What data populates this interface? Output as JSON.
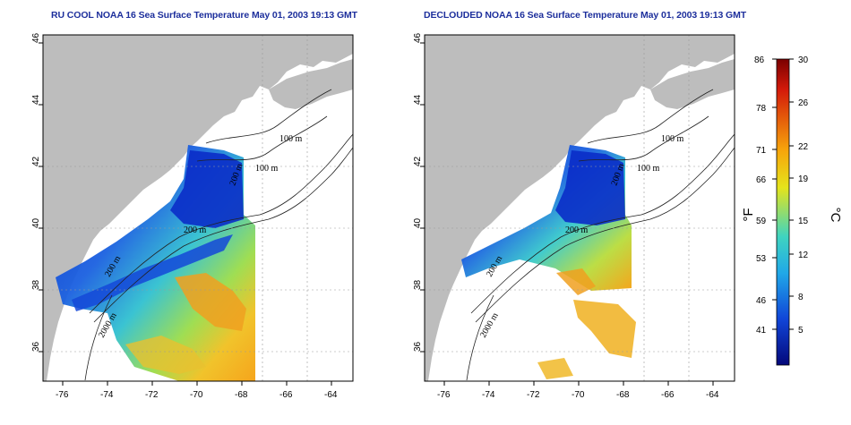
{
  "panels": [
    {
      "title": "RU COOL NOAA 16 Sea Surface Temperature May 01, 2003 19:13 GMT"
    },
    {
      "title": "DECLOUDED NOAA 16 Sea Surface Temperature May 01, 2003 19:13 GMT"
    }
  ],
  "axes": {
    "lon_ticks": [
      "-76",
      "-74",
      "-72",
      "-70",
      "-68",
      "-66",
      "-64"
    ],
    "lat_ticks": [
      "36",
      "38",
      "40",
      "42",
      "44",
      "46"
    ]
  },
  "contour_labels": {
    "left": [
      "100 m",
      "100 m",
      "200 m",
      "200 m",
      "2000 m",
      "200 m"
    ],
    "right": [
      "100 m",
      "100 m",
      "200 m",
      "200 m",
      "2000 m",
      "200 m"
    ]
  },
  "colorbar": {
    "fahrenheit_ticks": [
      "86",
      "78",
      "71",
      "66",
      "59",
      "53",
      "46",
      "41"
    ],
    "celsius_ticks": [
      "30",
      "26",
      "22",
      "19",
      "15",
      "12",
      "8",
      "5"
    ],
    "fahrenheit_unit": "°F",
    "celsius_unit": "°C"
  },
  "colors": {
    "land": "#bdbdbd",
    "title": "#1d2f9c",
    "cold": "#0a1fb8",
    "warm": "#f5a60f"
  }
}
